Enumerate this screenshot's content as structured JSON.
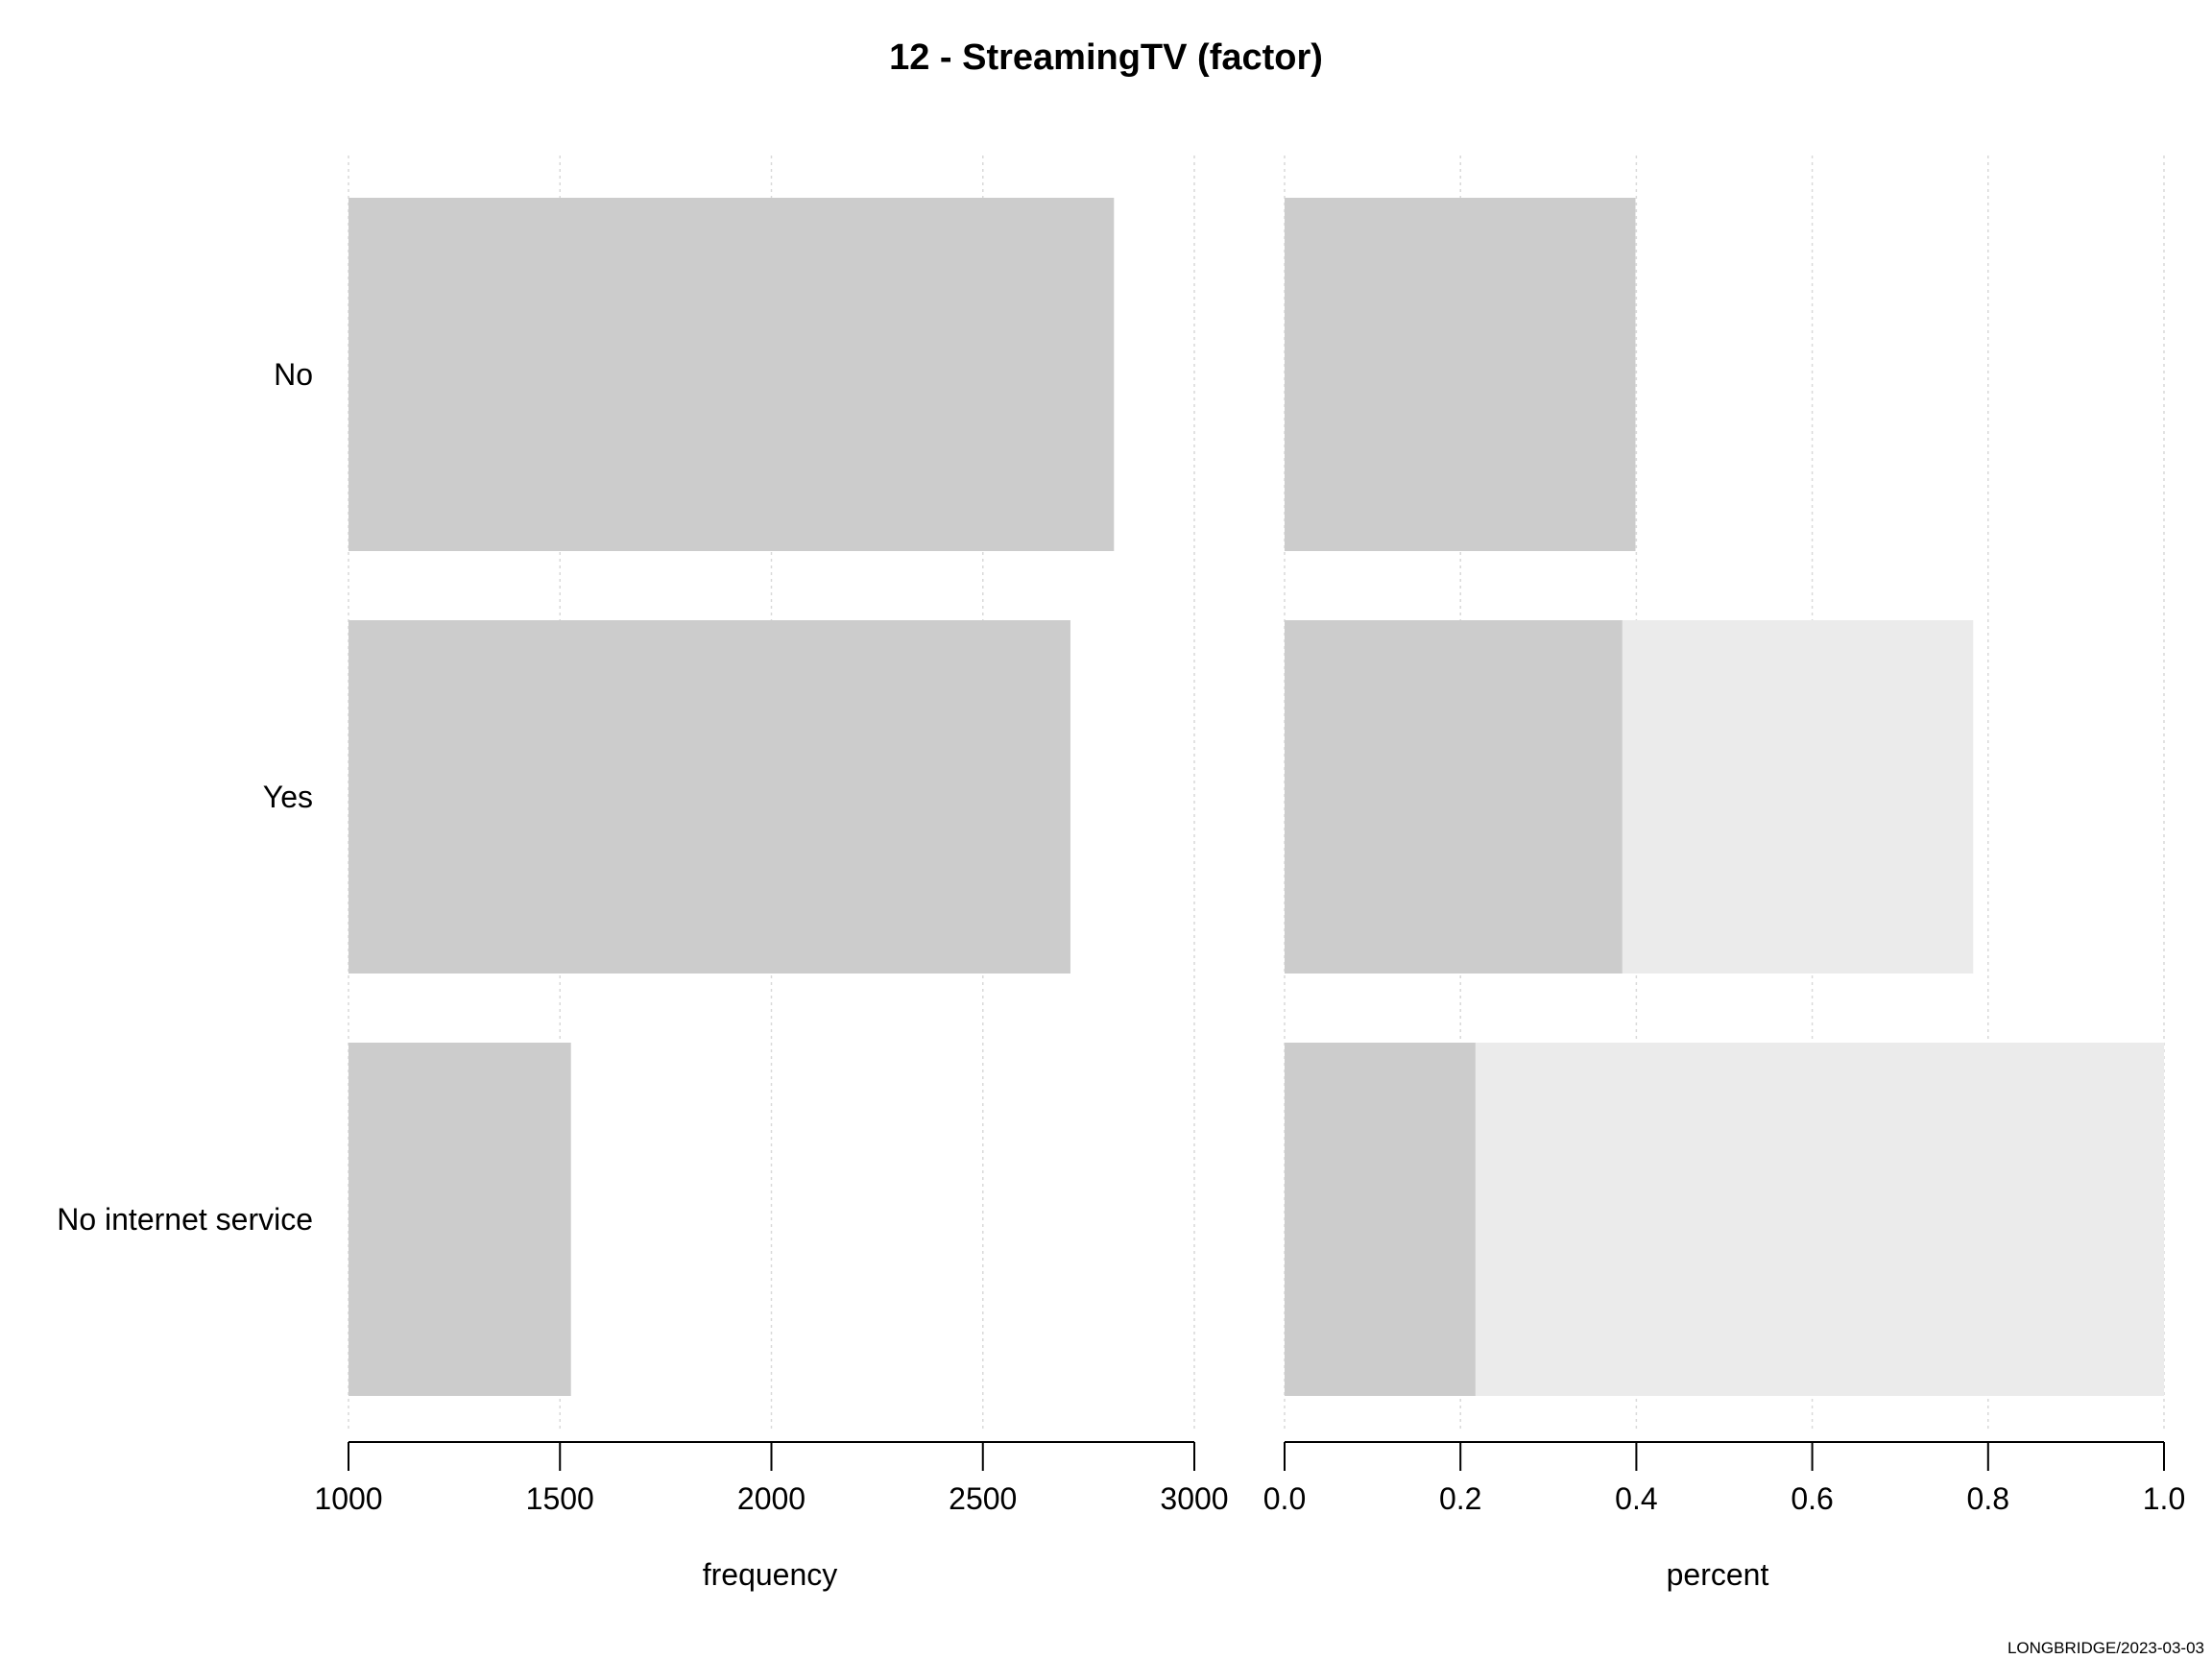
{
  "chart_data": [
    {
      "type": "bar",
      "orientation": "horizontal",
      "title": "12 - StreamingTV (factor)",
      "categories": [
        "No",
        "Yes",
        "No internet service"
      ],
      "values": [
        2810,
        2707,
        1526
      ],
      "xlabel": "frequency",
      "xlim": [
        1000,
        3000
      ],
      "xticks": [
        "1000",
        "1500",
        "2000",
        "2500",
        "3000"
      ],
      "grid": "vertical dotted",
      "colors": {
        "bar": "#cccccc",
        "grid": "#d9d9d9",
        "axis": "#000000"
      }
    },
    {
      "type": "bar",
      "orientation": "horizontal",
      "categories": [
        "No",
        "Yes",
        "No internet service"
      ],
      "values": [
        0.399,
        0.384,
        0.217
      ],
      "cumulative": [
        0.399,
        0.783,
        1.0
      ],
      "xlabel": "percent",
      "xlim": [
        0.0,
        1.0
      ],
      "xticks": [
        "0.0",
        "0.2",
        "0.4",
        "0.6",
        "0.8",
        "1.0"
      ],
      "grid": "vertical dotted",
      "colors": {
        "bar": "#cccccc",
        "cumulative": "#ebebeb",
        "grid": "#d9d9d9",
        "axis": "#000000"
      }
    }
  ],
  "footer": "LONGBRIDGE/2023-03-03"
}
